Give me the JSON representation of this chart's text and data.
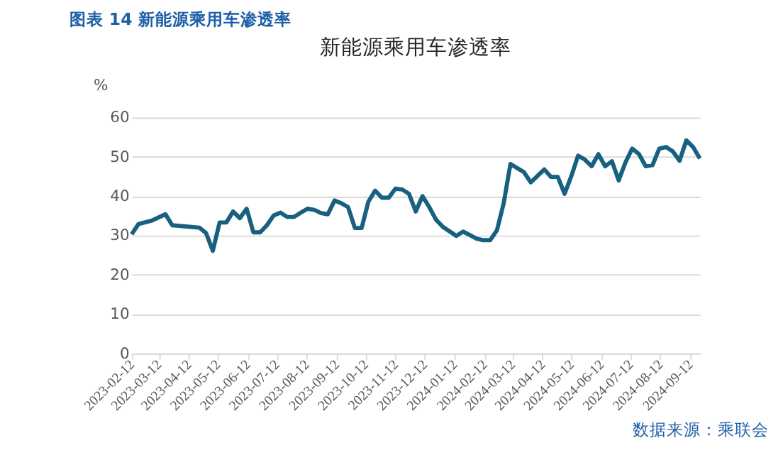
{
  "chart_data": {
    "type": "line",
    "title": "新能源乘用车渗透率",
    "subtitle": "图表 14 新能源乘用车渗透率",
    "ylabel": "%",
    "annotations": [
      "数据来源：乘联会"
    ],
    "x": [
      "2023-02-12",
      "2023-02-19",
      "2023-03-05",
      "2023-03-19",
      "2023-03-26",
      "2023-04-23",
      "2023-04-30",
      "2023-05-07",
      "2023-05-14",
      "2023-05-21",
      "2023-05-28",
      "2023-06-04",
      "2023-06-11",
      "2023-06-18",
      "2023-06-25",
      "2023-07-02",
      "2023-07-09",
      "2023-07-16",
      "2023-07-23",
      "2023-07-30",
      "2023-08-06",
      "2023-08-13",
      "2023-08-20",
      "2023-08-27",
      "2023-09-03",
      "2023-09-10",
      "2023-09-17",
      "2023-09-24",
      "2023-10-01",
      "2023-10-08",
      "2023-10-15",
      "2023-10-22",
      "2023-10-29",
      "2023-11-05",
      "2023-11-12",
      "2023-11-19",
      "2023-11-26",
      "2023-12-03",
      "2023-12-10",
      "2023-12-17",
      "2023-12-24",
      "2023-12-31",
      "2024-01-14",
      "2024-01-21",
      "2024-02-04",
      "2024-02-11",
      "2024-02-18",
      "2024-02-25",
      "2024-03-03",
      "2024-03-10",
      "2024-03-24",
      "2024-03-31",
      "2024-04-14",
      "2024-04-21",
      "2024-04-28",
      "2024-05-05",
      "2024-05-12",
      "2024-05-19",
      "2024-05-26",
      "2024-06-02",
      "2024-06-09",
      "2024-06-16",
      "2024-06-23",
      "2024-06-30",
      "2024-07-07",
      "2024-07-14",
      "2024-07-21",
      "2024-07-28",
      "2024-08-04",
      "2024-08-11",
      "2024-08-18",
      "2024-08-25",
      "2024-09-01",
      "2024-09-08",
      "2024-09-15",
      "2024-09-22"
    ],
    "series": [
      {
        "color": "#17607f",
        "values": [
          30.3,
          32.9,
          33.8,
          35.4,
          32.6,
          32.0,
          30.6,
          26.1,
          33.3,
          33.3,
          36.1,
          34.4,
          36.8,
          30.8,
          30.8,
          32.6,
          35.1,
          35.8,
          34.7,
          34.7,
          35.8,
          36.8,
          36.5,
          35.7,
          35.4,
          38.9,
          38.2,
          37.2,
          31.9,
          31.9,
          38.6,
          41.4,
          39.6,
          39.6,
          41.9,
          41.7,
          40.6,
          36.1,
          40.0,
          37.2,
          34.0,
          32.2,
          29.9,
          31.0,
          29.2,
          28.8,
          28.8,
          31.3,
          38.2,
          48.2,
          46.1,
          43.5,
          46.8,
          44.9,
          44.9,
          40.6,
          45.1,
          50.3,
          49.3,
          47.6,
          50.7,
          47.6,
          48.9,
          44.0,
          48.6,
          52.1,
          50.7,
          47.6,
          47.9,
          52.1,
          52.5,
          51.4,
          49.0,
          54.2,
          52.5,
          49.6
        ]
      }
    ],
    "xlim": [
      "2023-02-12",
      "2024-09-22"
    ],
    "xticks": [
      "2023-02-12",
      "2023-03-12",
      "2023-04-12",
      "2023-05-12",
      "2023-06-12",
      "2023-07-12",
      "2023-08-12",
      "2023-09-12",
      "2023-10-12",
      "2023-11-12",
      "2023-12-12",
      "2024-01-12",
      "2024-02-12",
      "2024-03-12",
      "2024-04-12",
      "2024-05-12",
      "2024-06-12",
      "2024-07-12",
      "2024-08-12",
      "2024-09-12"
    ],
    "ylim": [
      0,
      60
    ],
    "yticks": [
      0,
      10,
      20,
      30,
      40,
      50,
      60
    ],
    "grid": "y",
    "legend": false,
    "marker": "none",
    "line_style": "solid"
  }
}
